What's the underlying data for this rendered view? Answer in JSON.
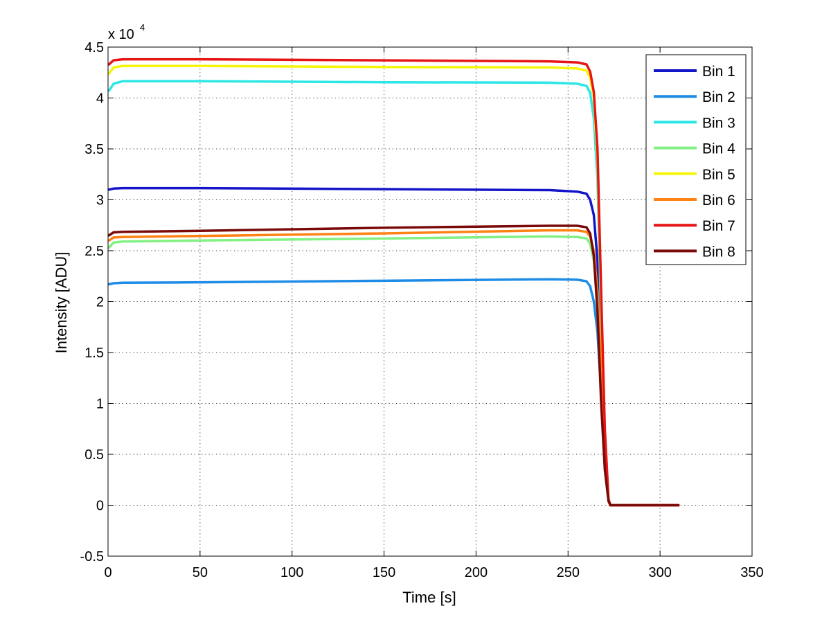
{
  "chart_data": {
    "type": "line",
    "title": "",
    "xlabel": "Time [s]",
    "ylabel": "Intensity [ADU]",
    "y_multiplier_label": {
      "base": "x 10",
      "exponent": "4"
    },
    "xlim": [
      0,
      350
    ],
    "ylim": [
      -0.5,
      4.5
    ],
    "xticks": [
      0,
      50,
      100,
      150,
      200,
      250,
      300,
      350
    ],
    "xtick_labels": [
      "0",
      "50",
      "100",
      "150",
      "200",
      "250",
      "300",
      "350"
    ],
    "yticks": [
      -0.5,
      0,
      0.5,
      1,
      1.5,
      2,
      2.5,
      3,
      3.5,
      4,
      4.5
    ],
    "ytick_labels": [
      "-0.5",
      "0",
      "0.5",
      "1",
      "1.5",
      "2",
      "2.5",
      "3",
      "3.5",
      "4",
      "4.5"
    ],
    "grid": true,
    "legend_position": "top-right",
    "series": [
      {
        "name": "Bin 1",
        "color": "#1414c8",
        "x": [
          0.5,
          3,
          8,
          50,
          150,
          240,
          255,
          260,
          262,
          264,
          266,
          268,
          270,
          272,
          273,
          275,
          310
        ],
        "y": [
          3.1,
          3.11,
          3.115,
          3.115,
          3.105,
          3.095,
          3.08,
          3.06,
          3.0,
          2.85,
          2.4,
          1.4,
          0.5,
          0.05,
          0,
          0,
          0
        ]
      },
      {
        "name": "Bin 2",
        "color": "#1e8ce6",
        "x": [
          0.5,
          3,
          8,
          50,
          150,
          240,
          255,
          260,
          262,
          264,
          266,
          268,
          270,
          272,
          273,
          275,
          310
        ],
        "y": [
          2.17,
          2.18,
          2.185,
          2.19,
          2.205,
          2.22,
          2.215,
          2.2,
          2.15,
          2.0,
          1.7,
          1.1,
          0.4,
          0.05,
          0,
          0,
          0
        ]
      },
      {
        "name": "Bin 3",
        "color": "#2de6e6",
        "x": [
          0.5,
          3,
          8,
          50,
          150,
          240,
          255,
          260,
          262,
          264,
          266,
          268,
          270,
          272,
          273,
          275,
          310
        ],
        "y": [
          4.07,
          4.14,
          4.165,
          4.165,
          4.155,
          4.15,
          4.14,
          4.12,
          4.05,
          3.8,
          3.2,
          1.8,
          0.6,
          0.05,
          0,
          0,
          0
        ]
      },
      {
        "name": "Bin 4",
        "color": "#82f082",
        "x": [
          0.5,
          3,
          8,
          50,
          150,
          240,
          255,
          260,
          262,
          264,
          266,
          268,
          270,
          272,
          273,
          275,
          310
        ],
        "y": [
          2.53,
          2.58,
          2.59,
          2.6,
          2.62,
          2.64,
          2.635,
          2.62,
          2.57,
          2.4,
          2.0,
          1.2,
          0.4,
          0.05,
          0,
          0,
          0
        ]
      },
      {
        "name": "Bin 5",
        "color": "#f5f50a",
        "x": [
          0.5,
          3,
          8,
          50,
          150,
          240,
          255,
          260,
          262,
          264,
          266,
          268,
          270,
          272,
          273,
          275,
          310
        ],
        "y": [
          4.24,
          4.3,
          4.315,
          4.315,
          4.305,
          4.3,
          4.29,
          4.27,
          4.2,
          4.0,
          3.4,
          2.0,
          0.7,
          0.05,
          0,
          0,
          0
        ]
      },
      {
        "name": "Bin 6",
        "color": "#ff8214",
        "x": [
          0.5,
          3,
          8,
          50,
          150,
          240,
          255,
          260,
          262,
          264,
          266,
          268,
          270,
          272,
          273,
          275,
          310
        ],
        "y": [
          2.6,
          2.63,
          2.635,
          2.645,
          2.67,
          2.7,
          2.7,
          2.685,
          2.64,
          2.5,
          2.1,
          1.3,
          0.45,
          0.05,
          0,
          0,
          0
        ]
      },
      {
        "name": "Bin 7",
        "color": "#e61414",
        "x": [
          0.5,
          3,
          8,
          50,
          150,
          240,
          255,
          260,
          262,
          264,
          266,
          268,
          270,
          272,
          273,
          275,
          310
        ],
        "y": [
          4.33,
          4.37,
          4.38,
          4.38,
          4.37,
          4.36,
          4.35,
          4.33,
          4.26,
          4.06,
          3.5,
          2.1,
          0.75,
          0.06,
          0,
          0,
          0
        ]
      },
      {
        "name": "Bin 8",
        "color": "#7a0a0a",
        "x": [
          0.5,
          3,
          8,
          50,
          150,
          240,
          255,
          260,
          262,
          264,
          266,
          268,
          270,
          272,
          273,
          275,
          310
        ],
        "y": [
          2.65,
          2.68,
          2.685,
          2.695,
          2.725,
          2.745,
          2.745,
          2.73,
          2.67,
          2.45,
          1.9,
          1.0,
          0.35,
          0.04,
          0,
          0,
          0
        ]
      }
    ]
  }
}
